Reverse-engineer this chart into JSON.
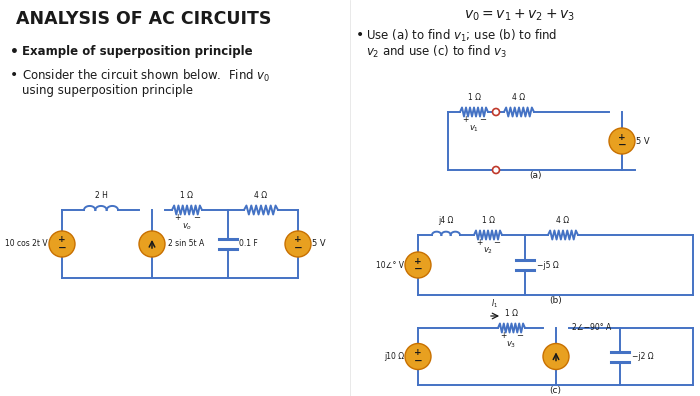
{
  "title": "ANALYSIS OF AC CIRCUITS",
  "bullet1": "Example of superposition principle",
  "bullet2_line1": "Consider the circuit shown below.  Find $v_0$",
  "bullet2_line2": "using superposition principle",
  "top_formula": "$v_0 = v_1 + v_2 + v_3$",
  "bullet3_line1": "Use (a) to find $v_1$; use (b) to find",
  "bullet3_line2": "$v_2$ and use (c) to find $v_3$",
  "bg_color": "#ffffff",
  "text_color": "#1a1a1a",
  "circuit_color": "#4472C4",
  "source_color": "#E8A020",
  "open_circle_color": "#c0392b"
}
